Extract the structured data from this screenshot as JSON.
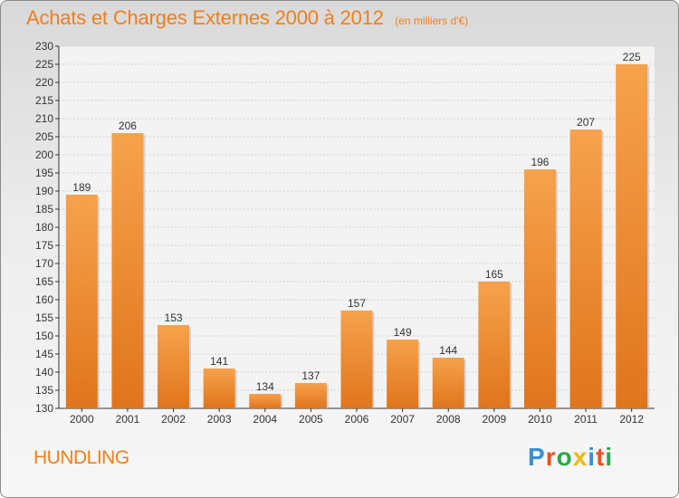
{
  "chart_data": {
    "type": "bar",
    "title": "Achats et Charges Externes 2000 à 2012",
    "subtitle": "(en milliers d'€)",
    "categories": [
      "2000",
      "2001",
      "2002",
      "2003",
      "2004",
      "2005",
      "2006",
      "2007",
      "2008",
      "2009",
      "2010",
      "2011",
      "2012"
    ],
    "values": [
      189,
      206,
      153,
      141,
      134,
      137,
      157,
      149,
      144,
      165,
      196,
      207,
      225
    ],
    "ylim": [
      130,
      230
    ],
    "ytick_step": 5,
    "xlabel": "",
    "ylabel": "",
    "grid": true,
    "bar_color": "#f08a1e"
  },
  "commune": "HUNDLING",
  "brand": {
    "letters": [
      "P",
      "r",
      "o",
      "x",
      "i",
      "t",
      "i"
    ],
    "colors": [
      "#3a8fd1",
      "#e8531f",
      "#2aa84a",
      "#f2b713",
      "#3a8fd1",
      "#e8531f",
      "#2aa84a"
    ]
  }
}
